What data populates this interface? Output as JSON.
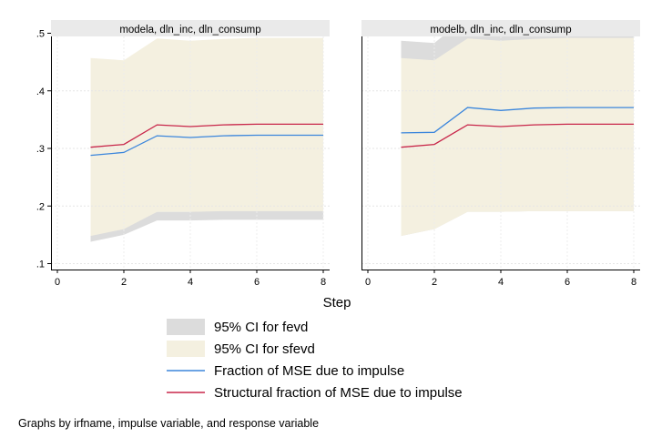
{
  "chart_data": {
    "type": "area",
    "x_title": "Step",
    "y_ticks": [
      0.1,
      0.2,
      0.3,
      0.4,
      0.5
    ],
    "y_tick_labels": [
      ".1",
      ".2",
      ".3",
      ".4",
      ".5"
    ],
    "x_ticks": [
      0,
      2,
      4,
      6,
      8
    ],
    "xlim": [
      0,
      8
    ],
    "ylim": [
      0.1,
      0.5
    ],
    "grid": true,
    "legend_position": "bottom",
    "note": "Graphs by irfname, impulse variable, and response variable",
    "legend": [
      {
        "label": "95% CI for fevd",
        "kind": "band",
        "color": "#dcdcdc"
      },
      {
        "label": "95% CI for sfevd",
        "kind": "band",
        "color": "#f4f0e0"
      },
      {
        "label": "Fraction of MSE due to impulse",
        "kind": "line",
        "color": "#3b86dc"
      },
      {
        "label": "Structural fraction of MSE due to impulse",
        "kind": "line",
        "color": "#c8264a"
      }
    ],
    "panels": [
      {
        "title": "modela, dln_inc, dln_consump",
        "x": [
          1,
          2,
          3,
          4,
          5,
          6,
          7,
          8
        ],
        "fevd_ci": {
          "lower": [
            0.138,
            0.15,
            0.175,
            0.175,
            0.176,
            0.176,
            0.176,
            0.176
          ],
          "upper": [
            0.152,
            0.163,
            0.19,
            0.19,
            0.192,
            0.192,
            0.192,
            0.192
          ]
        },
        "sfevd_ci": {
          "lower": [
            0.148,
            0.16,
            0.19,
            0.19,
            0.191,
            0.191,
            0.191,
            0.191
          ],
          "upper": [
            0.457,
            0.453,
            0.491,
            0.487,
            0.49,
            0.492,
            0.492,
            0.492
          ]
        },
        "fevd": [
          0.288,
          0.293,
          0.322,
          0.319,
          0.322,
          0.323,
          0.323,
          0.323
        ],
        "sfevd": [
          0.302,
          0.307,
          0.341,
          0.338,
          0.341,
          0.342,
          0.342,
          0.342
        ]
      },
      {
        "title": "modelb, dln_inc, dln_consump",
        "x": [
          1,
          2,
          3,
          4,
          5,
          6,
          7,
          8
        ],
        "fevd_ci": {
          "lower": [
            0.148,
            0.16,
            0.19,
            0.19,
            0.191,
            0.191,
            0.191,
            0.191
          ],
          "upper": [
            0.487,
            0.483,
            0.53,
            0.523,
            0.527,
            0.528,
            0.528,
            0.528
          ]
        },
        "sfevd_ci": {
          "lower": [
            0.148,
            0.16,
            0.19,
            0.19,
            0.191,
            0.191,
            0.191,
            0.191
          ],
          "upper": [
            0.457,
            0.453,
            0.491,
            0.487,
            0.49,
            0.492,
            0.492,
            0.492
          ]
        },
        "fevd": [
          0.327,
          0.328,
          0.371,
          0.366,
          0.37,
          0.371,
          0.371,
          0.371
        ],
        "sfevd": [
          0.302,
          0.307,
          0.341,
          0.338,
          0.341,
          0.342,
          0.342,
          0.342
        ]
      }
    ]
  }
}
